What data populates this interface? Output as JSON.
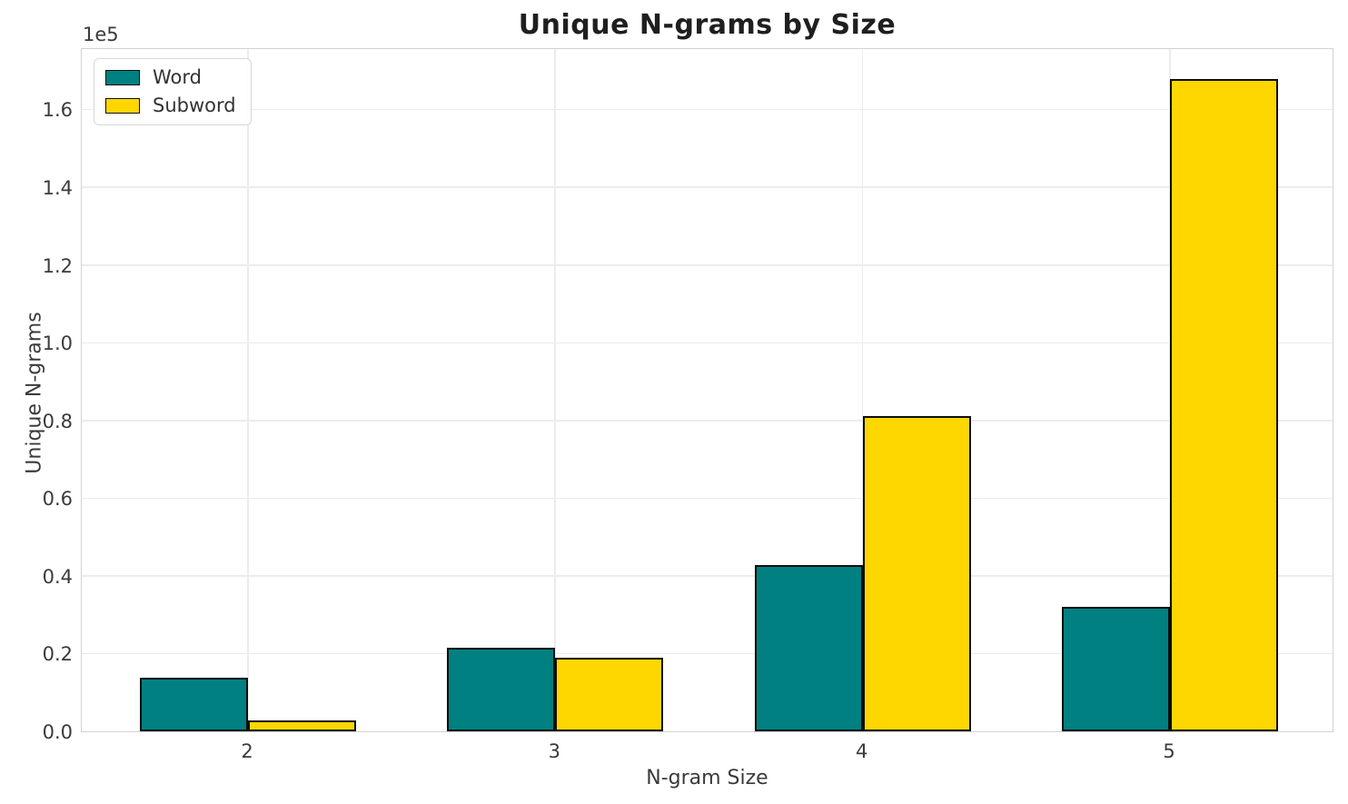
{
  "chart_data": {
    "type": "bar",
    "title": "Unique N-grams by Size",
    "xlabel": "N-gram Size",
    "ylabel": "Unique N-grams",
    "y_offset_label": "1e5",
    "categories": [
      "2",
      "3",
      "4",
      "5"
    ],
    "series": [
      {
        "name": "Word",
        "color": "#008080",
        "values": [
          13900,
          21600,
          42700,
          32100
        ]
      },
      {
        "name": "Subword",
        "color": "#FFD700",
        "values": [
          2900,
          18900,
          81100,
          167900
        ]
      }
    ],
    "bar_edge_color": "#0d0d0d",
    "ylim": [
      0,
      176000
    ],
    "yticks": {
      "values": [
        0,
        20000,
        40000,
        60000,
        80000,
        100000,
        120000,
        140000,
        160000
      ],
      "labels": [
        "0.0",
        "0.2",
        "0.4",
        "0.6",
        "0.8",
        "1.0",
        "1.2",
        "1.4",
        "1.6"
      ]
    },
    "grid": true,
    "legend_position": "upper left"
  }
}
